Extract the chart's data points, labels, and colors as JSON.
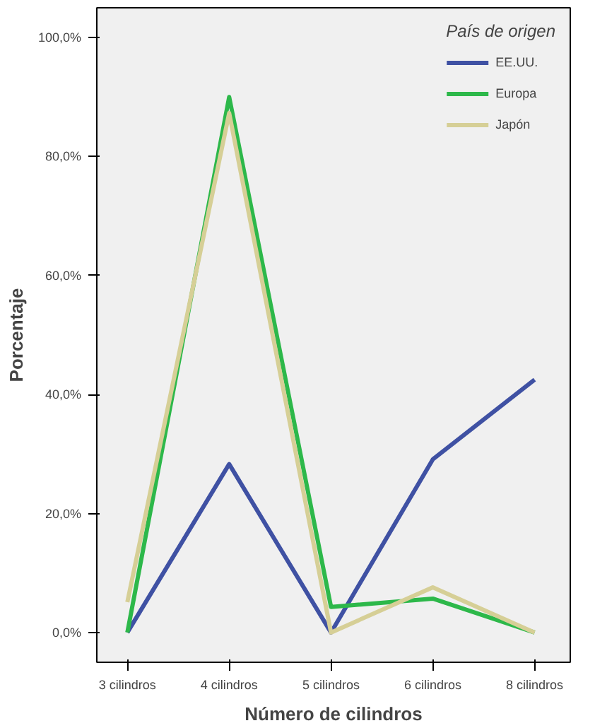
{
  "chart_data": {
    "type": "line",
    "xlabel": "Número de cilindros",
    "ylabel": "Porcentaje",
    "legend_title": "País de origen",
    "legend": "top right",
    "grid": false,
    "categories": [
      "3 cilindros",
      "4 cilindros",
      "5 cilindros",
      "6 cilindros",
      "8 cilindros"
    ],
    "ylim": [
      -5,
      105
    ],
    "yticks": [
      {
        "value": 0,
        "label": "0,0%"
      },
      {
        "value": 20,
        "label": "20,0%"
      },
      {
        "value": 40,
        "label": "40,0%"
      },
      {
        "value": 60,
        "label": "60,0%"
      },
      {
        "value": 80,
        "label": "80,0%"
      },
      {
        "value": 100,
        "label": "100,0%"
      }
    ],
    "series": [
      {
        "name": "EE.UU.",
        "color": "#3f51a3",
        "values": [
          0,
          28.3,
          0,
          29.1,
          42.5
        ]
      },
      {
        "name": "Europa",
        "color": "#2db84a",
        "values": [
          0,
          90.0,
          4.3,
          5.7,
          0
        ]
      },
      {
        "name": "Japón",
        "color": "#d6cf96",
        "values": [
          5.1,
          87.3,
          0,
          7.6,
          0
        ]
      }
    ]
  }
}
